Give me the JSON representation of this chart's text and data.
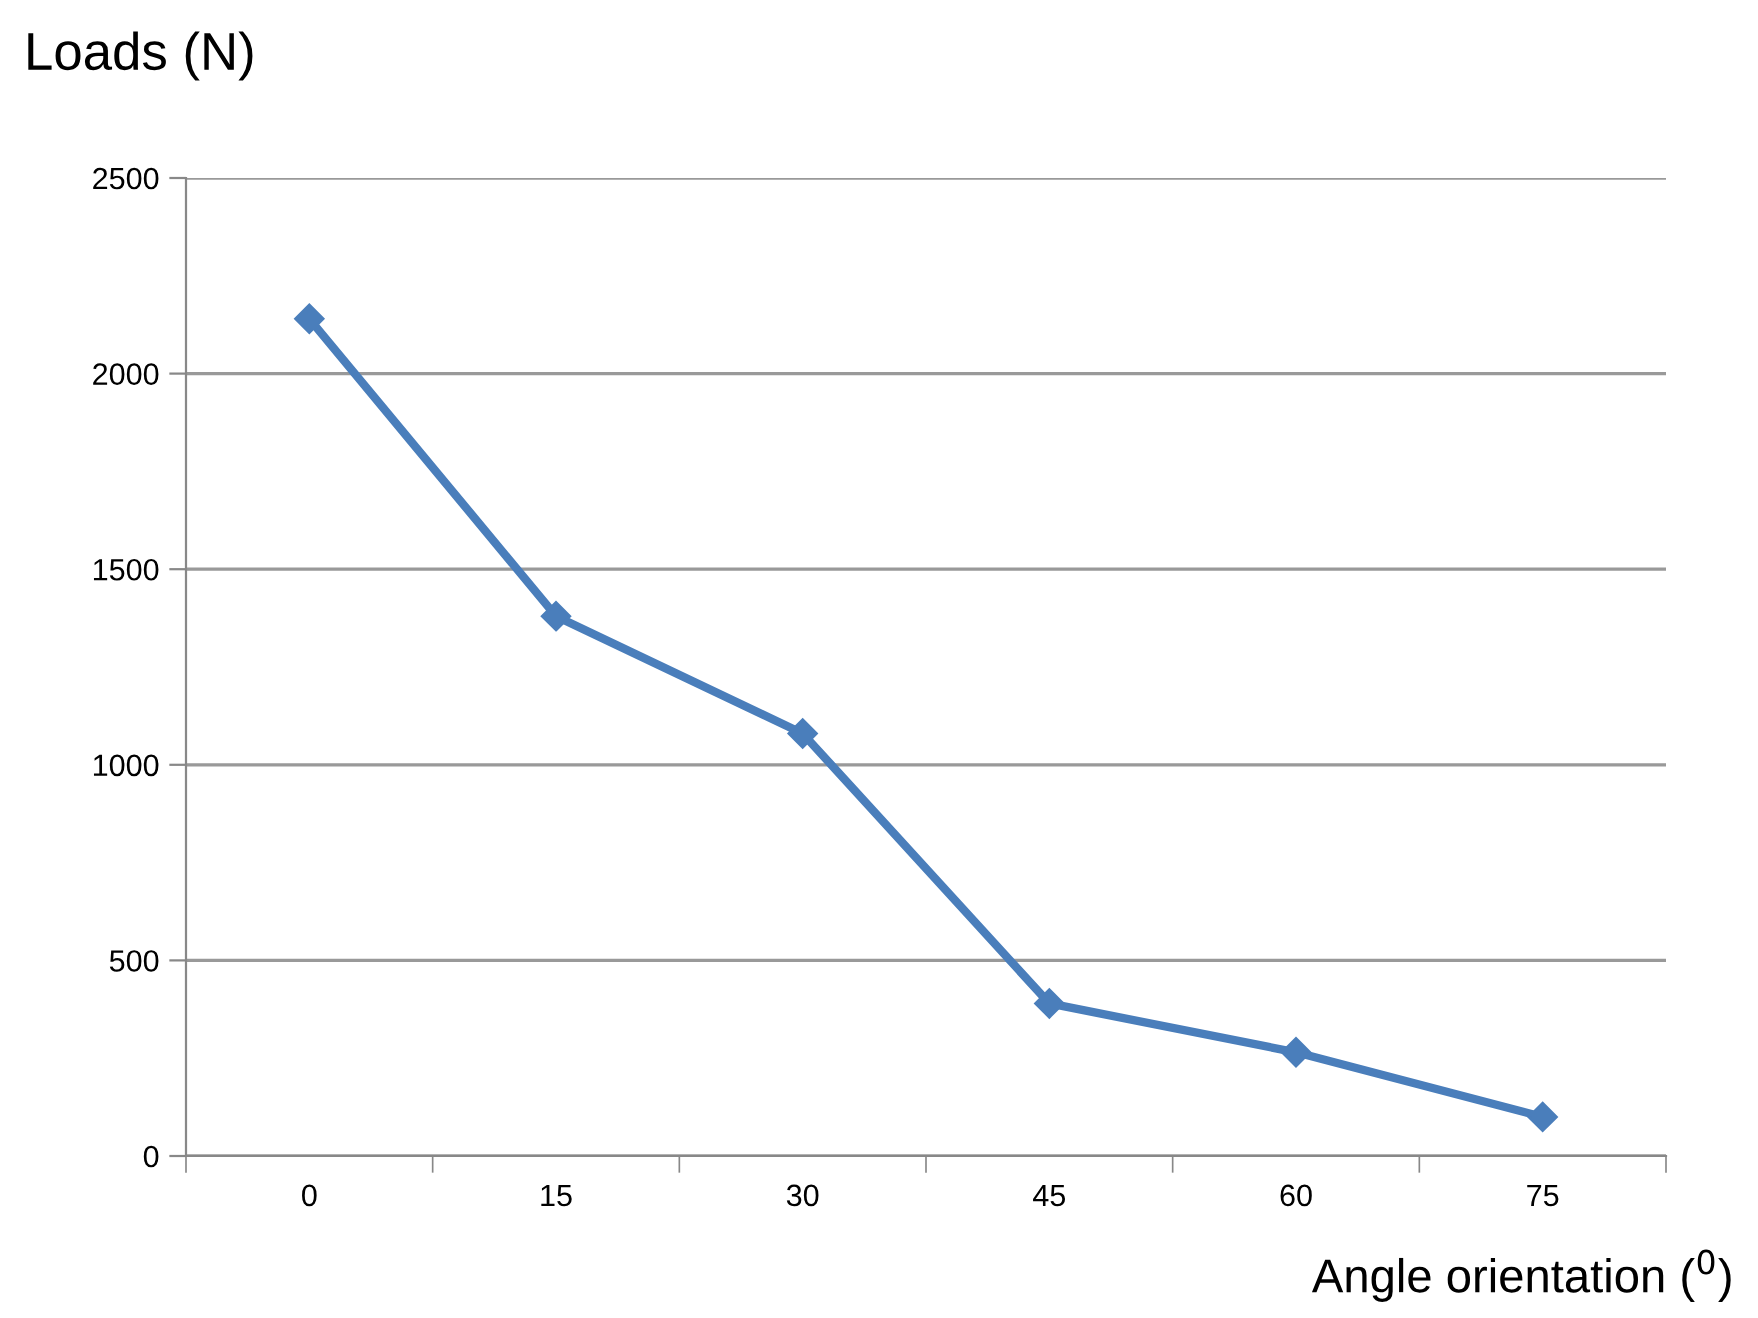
{
  "chart_data": {
    "type": "line",
    "ylabel": "Loads (N)",
    "xlabel": "Angle orientation ($^{0}$)",
    "categories": [
      "0",
      "15",
      "30",
      "45",
      "60",
      "75"
    ],
    "series": [
      {
        "color": "#4a7ebb",
        "values": [
          2140,
          1380,
          1080,
          390,
          265,
          100
        ]
      }
    ],
    "ylim": [
      0,
      2500
    ],
    "yticks": [
      0,
      500,
      1000,
      1500,
      2000,
      2500
    ],
    "grid": "y",
    "marker": "diamond",
    "line_style": "solid",
    "legend": false
  }
}
